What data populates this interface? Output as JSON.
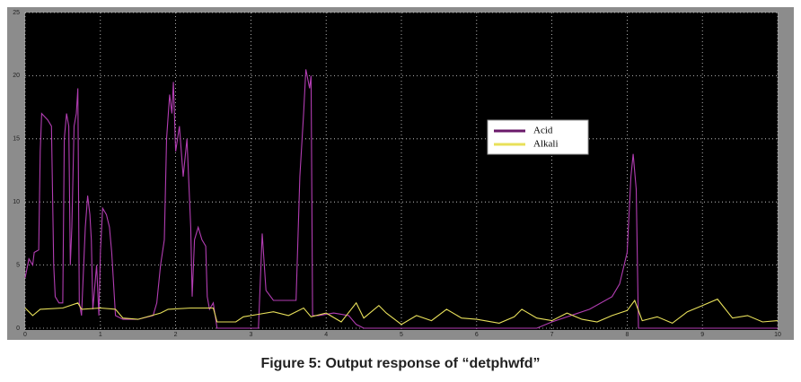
{
  "chart_data": {
    "type": "line",
    "caption": "Figure 5: Output response of “detphwfd”",
    "xlim": [
      0,
      10
    ],
    "xticks": [
      0,
      1,
      2,
      3,
      4,
      5,
      6,
      7,
      8,
      9,
      10
    ],
    "ylim": [
      0,
      25
    ],
    "yticks": [
      0,
      5,
      10,
      15,
      20,
      25
    ],
    "grid": true,
    "legend": "upper-center",
    "series": [
      {
        "name": "Acid",
        "color": "#b23db2",
        "x": [
          0,
          0.05,
          0.1,
          0.12,
          0.18,
          0.2,
          0.22,
          0.3,
          0.35,
          0.38,
          0.4,
          0.45,
          0.5,
          0.52,
          0.55,
          0.58,
          0.6,
          0.62,
          0.65,
          0.68,
          0.7,
          0.72,
          0.75,
          0.8,
          0.83,
          0.86,
          0.88,
          0.9,
          0.95,
          0.98,
          1.0,
          1.03,
          1.08,
          1.12,
          1.15,
          1.2,
          1.3,
          1.5,
          1.7,
          1.75,
          1.8,
          1.85,
          1.88,
          1.92,
          1.95,
          1.97,
          2.0,
          2.05,
          2.1,
          2.15,
          2.2,
          2.22,
          2.25,
          2.3,
          2.35,
          2.4,
          2.42,
          2.45,
          2.5,
          2.55,
          2.7,
          3.1,
          3.15,
          3.2,
          3.3,
          3.6,
          3.65,
          3.7,
          3.73,
          3.78,
          3.8,
          3.82,
          3.9,
          4.1,
          4.3,
          4.4,
          4.5,
          6.8,
          7.0,
          7.5,
          7.8,
          7.9,
          8.0,
          8.05,
          8.08,
          8.12,
          8.15,
          10
        ],
        "values": [
          4,
          5.5,
          5,
          6,
          6.2,
          14,
          17,
          16.5,
          16,
          5,
          2.5,
          2,
          2,
          15,
          17,
          16,
          5,
          8,
          16,
          17,
          19,
          2,
          1,
          8,
          10.5,
          9,
          7,
          1.5,
          5,
          1,
          6,
          9.5,
          9,
          8,
          6,
          1,
          0.7,
          0.7,
          1,
          2,
          5,
          7,
          15,
          18.5,
          17,
          19.5,
          14,
          16,
          12,
          15,
          8,
          2.5,
          7,
          8,
          7,
          6.5,
          2.5,
          1.5,
          2,
          0,
          0,
          0,
          7.5,
          3,
          2.2,
          2.2,
          12,
          17,
          20.5,
          19,
          20,
          1,
          1,
          1.2,
          1,
          0.3,
          0,
          0,
          0.5,
          1.5,
          2.5,
          3.5,
          6,
          12,
          13.8,
          11,
          0,
          0
        ]
      },
      {
        "name": "Alkali",
        "color": "#e8e05a",
        "x": [
          0,
          0.1,
          0.2,
          0.5,
          0.7,
          0.75,
          1.0,
          1.2,
          1.3,
          1.5,
          1.8,
          1.9,
          2.2,
          2.5,
          2.55,
          2.8,
          2.9,
          3.1,
          3.3,
          3.5,
          3.7,
          3.8,
          4.0,
          4.2,
          4.4,
          4.5,
          4.7,
          4.8,
          5.0,
          5.2,
          5.4,
          5.6,
          5.8,
          6.0,
          6.3,
          6.5,
          6.6,
          6.8,
          7.0,
          7.2,
          7.4,
          7.6,
          7.8,
          8.0,
          8.1,
          8.2,
          8.4,
          8.6,
          8.8,
          9.0,
          9.2,
          9.4,
          9.6,
          9.8,
          10
        ],
        "values": [
          1.6,
          1,
          1.5,
          1.6,
          2,
          1.5,
          1.6,
          1.5,
          0.8,
          0.7,
          1.2,
          1.5,
          1.6,
          1.6,
          0.5,
          0.5,
          0.9,
          1.1,
          1.3,
          1,
          1.6,
          0.9,
          1.2,
          0.5,
          2,
          0.8,
          1.8,
          1.2,
          0.3,
          1,
          0.6,
          1.5,
          0.8,
          0.7,
          0.4,
          0.9,
          1.5,
          0.8,
          0.6,
          1.2,
          0.7,
          0.5,
          1,
          1.4,
          2.2,
          0.6,
          0.9,
          0.4,
          1.3,
          1.8,
          2.3,
          0.8,
          1,
          0.5,
          0.6
        ]
      }
    ]
  }
}
